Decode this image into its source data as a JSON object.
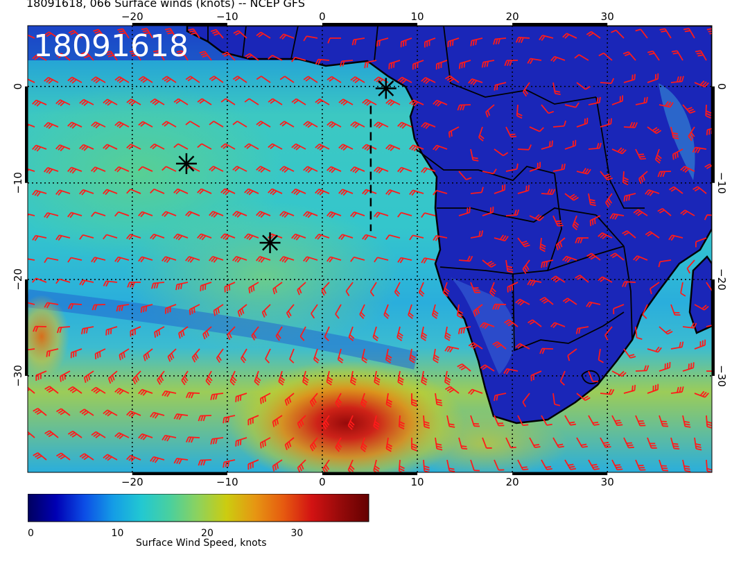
{
  "header": {
    "title": "18091618, 066 Surface winds (knots) -- NCEP GFS"
  },
  "map": {
    "run_label": "18091618",
    "lon_range": [
      -31,
      41
    ],
    "lat_range": [
      6.3,
      -40
    ],
    "lon_ticks": [
      -20,
      -10,
      0,
      10,
      20,
      30
    ],
    "lat_ticks": [
      0,
      -10,
      -20,
      -30
    ],
    "lon_tick_labels": [
      "−20",
      "−10",
      "0",
      "10",
      "20",
      "30"
    ],
    "lat_tick_labels": [
      "0",
      "−10",
      "−20",
      "−30"
    ],
    "grid": "dotted",
    "barb_color": "#ff1a1a",
    "land_color": "#1a26b8",
    "coastline_color": "#000000",
    "markers": [
      {
        "lon": -14.3,
        "lat": -8.0
      },
      {
        "lon": -5.5,
        "lat": -16.2
      },
      {
        "lon": 6.7,
        "lat": -0.2
      }
    ],
    "dashed_track": [
      [
        5.1,
        -2.0
      ],
      [
        5.1,
        -15.0
      ]
    ]
  },
  "colorbar": {
    "min": 0,
    "max": 38,
    "ticks": [
      0,
      10,
      20,
      30
    ],
    "tick_labels": [
      "0",
      "10",
      "20",
      "30"
    ],
    "label": "Surface Wind Speed, knots",
    "colors": [
      "#00005e",
      "#0000b4",
      "#0c4ee6",
      "#149ce6",
      "#22c8d2",
      "#4ad09e",
      "#8ed25c",
      "#cccc10",
      "#e69612",
      "#e65a10",
      "#d21212",
      "#960a0a",
      "#640000"
    ]
  }
}
